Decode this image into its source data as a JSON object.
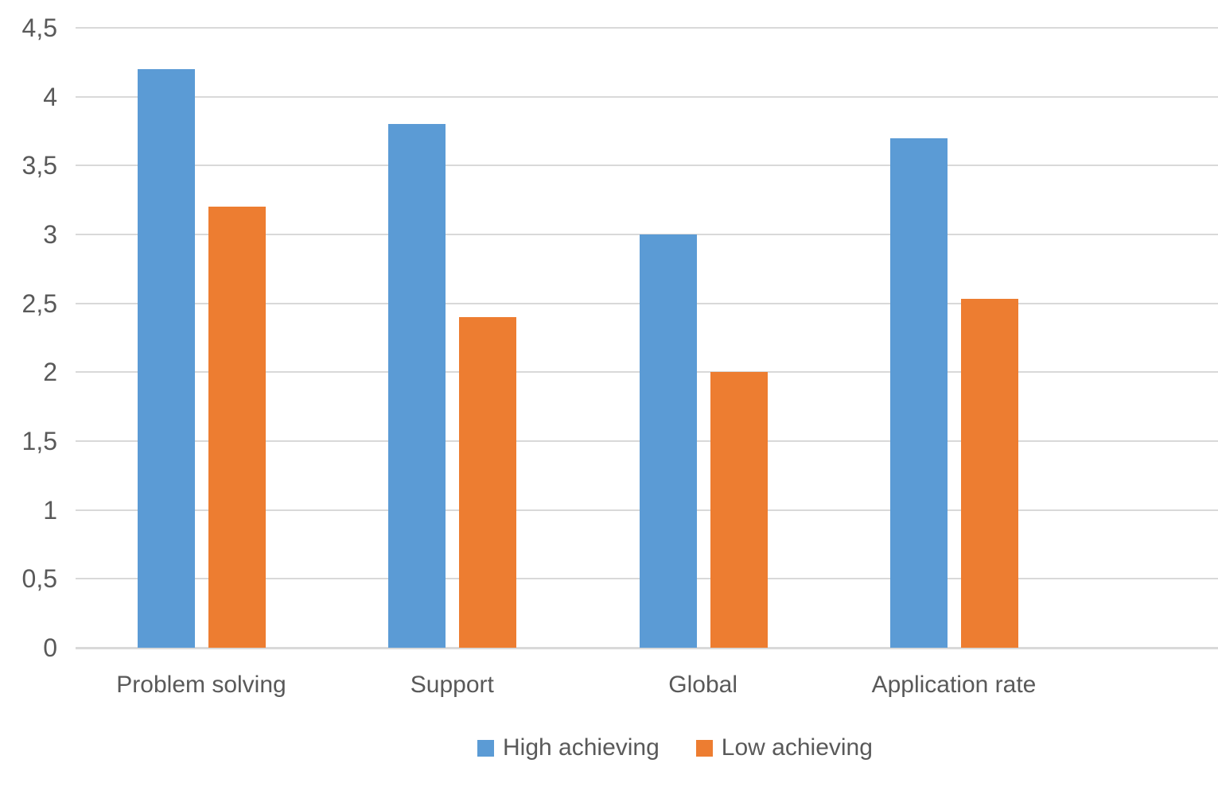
{
  "chart_data": {
    "type": "bar",
    "title": "",
    "xlabel": "",
    "ylabel": "",
    "categories": [
      "Problem solving",
      "Support",
      "Global",
      "Application rate"
    ],
    "series": [
      {
        "name": "High achieving",
        "color": "#5B9BD5",
        "values": [
          4.2,
          3.8,
          3.0,
          3.7
        ]
      },
      {
        "name": "Low achieving",
        "color": "#ED7D31",
        "values": [
          3.2,
          2.4,
          2.0,
          2.53
        ]
      }
    ],
    "ylim": [
      0,
      4.5
    ],
    "ytick_interval": 0.5,
    "ytick_labels": [
      "0",
      "0,5",
      "1",
      "1,5",
      "2",
      "2,5",
      "3",
      "3,5",
      "4",
      "4,5"
    ],
    "decimal_separator": ",",
    "grid": true,
    "gridline_color": "#D9D9D9",
    "text_color": "#595959",
    "background_color": "#FFFFFF",
    "legend_position": "bottom"
  }
}
